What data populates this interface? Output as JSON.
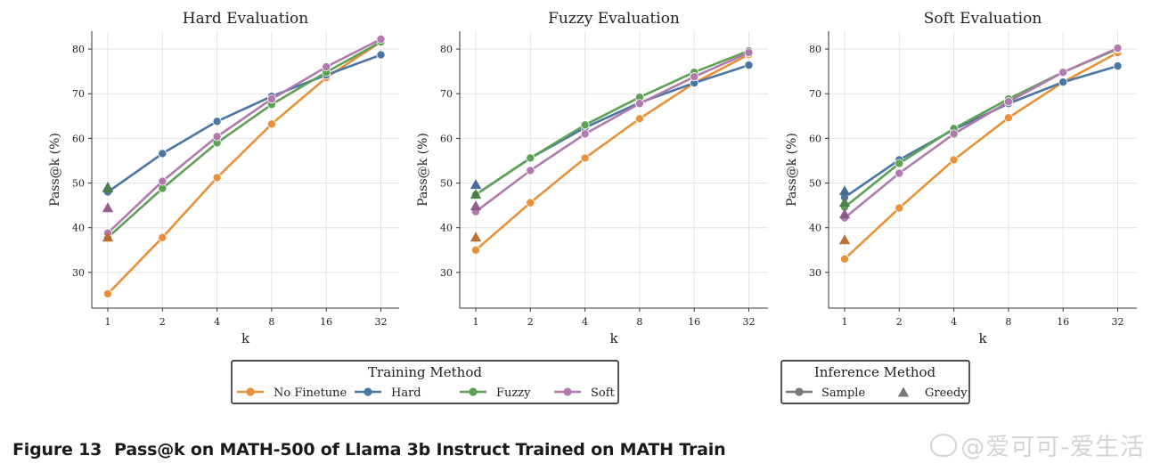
{
  "chart_data": [
    {
      "type": "line",
      "title": "Hard Evaluation",
      "xlabel": "k",
      "ylabel": "Pass@k (%)",
      "x_ticks": [
        "1",
        "2",
        "4",
        "8",
        "16",
        "32"
      ],
      "y_ticks": [
        "30",
        "40",
        "50",
        "60",
        "70",
        "80"
      ],
      "ylim": [
        22,
        84
      ],
      "grid": true,
      "series": [
        {
          "name": "No Finetune",
          "values": [
            25.2,
            37.8,
            51.2,
            63.2,
            73.6,
            81.6
          ],
          "greedy": 37.8
        },
        {
          "name": "Hard",
          "values": [
            48.0,
            56.6,
            63.8,
            69.4,
            74.2,
            78.7
          ],
          "greedy": 49.0
        },
        {
          "name": "Fuzzy",
          "values": [
            37.8,
            48.8,
            59.0,
            67.6,
            74.8,
            81.6
          ],
          "greedy": 48.8
        },
        {
          "name": "Soft",
          "values": [
            38.8,
            50.4,
            60.4,
            68.8,
            76.0,
            82.2
          ],
          "greedy": 44.4
        }
      ]
    },
    {
      "type": "line",
      "title": "Fuzzy Evaluation",
      "xlabel": "k",
      "ylabel": "Pass@k (%)",
      "x_ticks": [
        "1",
        "2",
        "4",
        "8",
        "16",
        "32"
      ],
      "y_ticks": [
        "30",
        "40",
        "50",
        "60",
        "70",
        "80"
      ],
      "ylim": [
        22,
        84
      ],
      "grid": true,
      "series": [
        {
          "name": "No Finetune",
          "values": [
            35.0,
            45.6,
            55.6,
            64.4,
            72.4,
            78.8
          ],
          "greedy": 37.8
        },
        {
          "name": "Hard",
          "values": [
            47.4,
            55.6,
            62.4,
            68.0,
            72.4,
            76.4
          ],
          "greedy": 49.6
        },
        {
          "name": "Fuzzy",
          "values": [
            47.4,
            55.6,
            63.0,
            69.2,
            74.8,
            79.6
          ],
          "greedy": 47.4
        },
        {
          "name": "Soft",
          "values": [
            43.6,
            52.8,
            61.0,
            67.8,
            73.8,
            79.2
          ],
          "greedy": 44.8
        }
      ]
    },
    {
      "type": "line",
      "title": "Soft Evaluation",
      "xlabel": "k",
      "ylabel": "Pass@k (%)",
      "x_ticks": [
        "1",
        "2",
        "4",
        "8",
        "16",
        "32"
      ],
      "y_ticks": [
        "30",
        "40",
        "50",
        "60",
        "70",
        "80"
      ],
      "ylim": [
        22,
        84
      ],
      "grid": true,
      "series": [
        {
          "name": "No Finetune",
          "values": [
            33.0,
            44.4,
            55.2,
            64.6,
            72.6,
            79.2
          ],
          "greedy": 37.2
        },
        {
          "name": "Hard",
          "values": [
            46.8,
            55.2,
            62.0,
            67.8,
            72.6,
            76.2
          ],
          "greedy": 48.2
        },
        {
          "name": "Fuzzy",
          "values": [
            44.6,
            54.4,
            62.2,
            68.8,
            74.8,
            80.0
          ],
          "greedy": 45.6
        },
        {
          "name": "Soft",
          "values": [
            42.2,
            52.2,
            61.0,
            68.2,
            74.8,
            80.2
          ],
          "greedy": 43.0
        }
      ]
    }
  ],
  "legend_training": {
    "title": "Training Method",
    "items": [
      {
        "label": "No Finetune",
        "color": "#e8913a"
      },
      {
        "label": "Hard",
        "color": "#4a76a3"
      },
      {
        "label": "Fuzzy",
        "color": "#5ea155"
      },
      {
        "label": "Soft",
        "color": "#b07aae"
      }
    ]
  },
  "legend_inference": {
    "title": "Inference Method",
    "items": [
      {
        "label": "Sample",
        "marker": "circle",
        "color": "#777777"
      },
      {
        "label": "Greedy",
        "marker": "triangle",
        "color": "#777777"
      }
    ]
  },
  "series_colors": {
    "No Finetune": "#e8913a",
    "Hard": "#4a76a3",
    "Fuzzy": "#5ea155",
    "Soft": "#b07aae"
  },
  "greedy_colors": {
    "No Finetune": "#b8682a",
    "Hard": "#3d6690",
    "Fuzzy": "#4a7f44",
    "Soft": "#8a5688"
  },
  "caption": {
    "number": "Figure 13",
    "text": "Pass@k on MATH-500 of Llama 3b Instruct Trained on MATH Train"
  },
  "watermark": "@爱可可-爱生活"
}
